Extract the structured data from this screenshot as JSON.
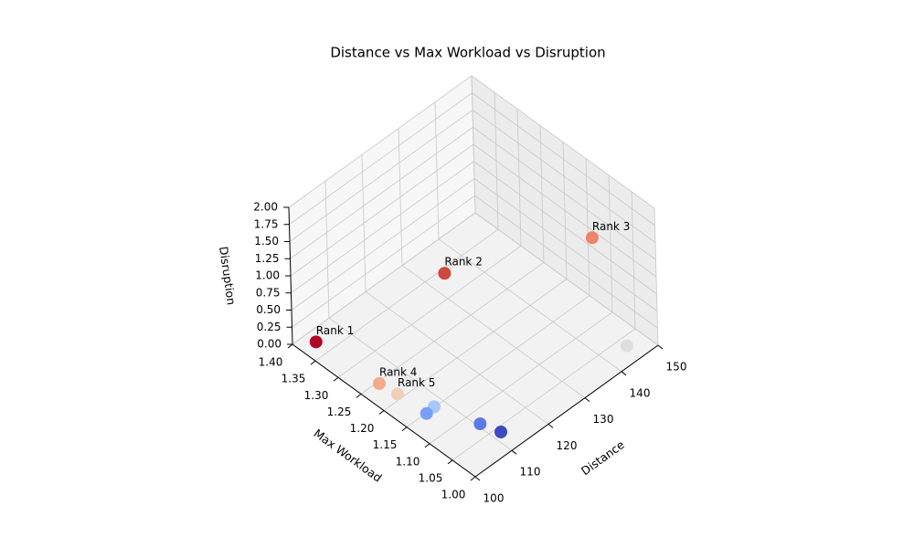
{
  "chart_data": {
    "type": "scatter3d",
    "title": "Distance vs Max Workload vs Disruption",
    "xlabel": "Distance",
    "ylabel": "Max Workload",
    "zlabel": "Disruption",
    "xlim": [
      100,
      150
    ],
    "xticks": [
      100,
      110,
      120,
      130,
      140,
      150
    ],
    "ylim": [
      1.0,
      1.4
    ],
    "yticks": [
      {
        "value": 1.0,
        "label": "1.00"
      },
      {
        "value": 1.05,
        "label": "1.05"
      },
      {
        "value": 1.1,
        "label": "1.10"
      },
      {
        "value": 1.15,
        "label": "1.15"
      },
      {
        "value": 1.2,
        "label": "1.20"
      },
      {
        "value": 1.25,
        "label": "1.25"
      },
      {
        "value": 1.3,
        "label": "1.30"
      },
      {
        "value": 1.35,
        "label": "1.35"
      },
      {
        "value": 1.4,
        "label": "1.40"
      }
    ],
    "zlim": [
      0,
      2
    ],
    "zticks": [
      {
        "value": 0,
        "label": "0.00"
      },
      {
        "value": 0.25,
        "label": "0.25"
      },
      {
        "value": 0.5,
        "label": "0.50"
      },
      {
        "value": 0.75,
        "label": "0.75"
      },
      {
        "value": 1,
        "label": "1.00"
      },
      {
        "value": 1.25,
        "label": "1.25"
      },
      {
        "value": 1.5,
        "label": "1.50"
      },
      {
        "value": 1.75,
        "label": "1.75"
      },
      {
        "value": 2,
        "label": "2.00"
      }
    ],
    "grid": true,
    "series": [
      {
        "x": [
          103.7,
          121.6,
          148.6,
          104.5,
          105,
          145.6,
          107.6,
          105.3,
          110.7,
          112
        ],
        "y": [
          1.378,
          1.236,
          1.129,
          1.246,
          1.21,
          1.033,
          1.151,
          1.149,
          1.075,
          1.04
        ],
        "z": [
          0,
          1,
          1,
          0,
          0,
          0,
          0,
          0,
          0,
          0
        ],
        "colors": [
          "#b40426",
          "#d0473d",
          "#ee8468",
          "#f5a98b",
          "#efcfbb",
          "#dddddd",
          "#a9c6fd",
          "#7b9ff9",
          "#5b7ae5",
          "#3b4cc0"
        ],
        "point_labels": [
          "Rank 1",
          "Rank 2",
          "Rank 3",
          "Rank 4",
          "Rank 5",
          null,
          null,
          null,
          null,
          null
        ]
      }
    ]
  }
}
